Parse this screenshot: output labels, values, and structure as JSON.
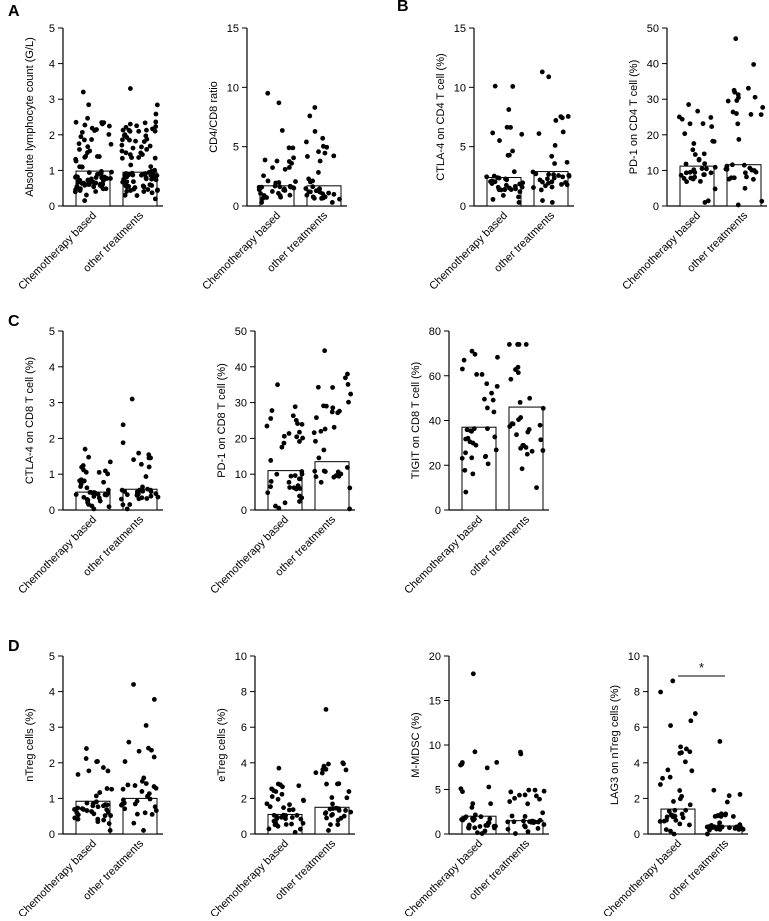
{
  "panel_labels": [
    "A",
    "B",
    "C",
    "D"
  ],
  "chart_data": [
    {
      "panel": "A",
      "type": "scatter",
      "subtype": "bar-with-dots",
      "categories": [
        "Chemotherapy based",
        "other treatments"
      ],
      "ylabel": "Absolute lymphocyte count (G/L)",
      "ylim": [
        0,
        5
      ],
      "yticks": [
        0,
        1,
        2,
        3,
        4,
        5
      ],
      "bar_values": [
        0.98,
        0.95
      ],
      "point_counts": [
        80,
        90
      ],
      "point_range": [
        [
          0.15,
          3.2
        ],
        [
          0.2,
          3.3
        ]
      ]
    },
    {
      "panel": "A",
      "type": "scatter",
      "subtype": "bar-with-dots",
      "categories": [
        "Chemotherapy based",
        "other treatments"
      ],
      "ylabel": "CD4/CD8 ratio",
      "ylim": [
        0,
        15
      ],
      "yticks": [
        0,
        5,
        10,
        15
      ],
      "bar_values": [
        1.7,
        1.7
      ],
      "point_counts": [
        40,
        35
      ],
      "point_range": [
        [
          0.3,
          9.5
        ],
        [
          0.3,
          8.3
        ]
      ]
    },
    {
      "panel": "B",
      "type": "scatter",
      "subtype": "bar-with-dots",
      "categories": [
        "Chemotherapy based",
        "other treatments"
      ],
      "ylabel": "CTLA-4 on CD4 T cell (%)",
      "ylim": [
        0,
        15
      ],
      "yticks": [
        0,
        5,
        10,
        15
      ],
      "bar_values": [
        2.4,
        2.9
      ],
      "point_counts": [
        40,
        35
      ],
      "point_range": [
        [
          0.3,
          10.1
        ],
        [
          0.3,
          11.3
        ]
      ]
    },
    {
      "panel": "B",
      "type": "scatter",
      "subtype": "bar-with-dots",
      "categories": [
        "Chemotherapy based",
        "other treatments"
      ],
      "ylabel": "PD-1 on CD4 T cell (%)",
      "ylim": [
        0,
        50
      ],
      "yticks": [
        0,
        10,
        20,
        30,
        40,
        50
      ],
      "bar_values": [
        11.2,
        11.6
      ],
      "point_counts": [
        40,
        35
      ],
      "point_range": [
        [
          1,
          28.5
        ],
        [
          0.3,
          47
        ]
      ]
    },
    {
      "panel": "C",
      "type": "scatter",
      "subtype": "bar-with-dots",
      "categories": [
        "Chemotherapy based",
        "other treatments"
      ],
      "ylabel": "CTLA-4 on CD8 T cell (%)",
      "ylim": [
        0,
        5
      ],
      "yticks": [
        0,
        1,
        2,
        3,
        4,
        5
      ],
      "bar_values": [
        0.5,
        0.58
      ],
      "point_counts": [
        40,
        35
      ],
      "point_range": [
        [
          0.03,
          1.7
        ],
        [
          0.03,
          3.1
        ]
      ]
    },
    {
      "panel": "C",
      "type": "scatter",
      "subtype": "bar-with-dots",
      "categories": [
        "Chemotherapy based",
        "other treatments"
      ],
      "ylabel": "PD-1 on CD8 T cell (%)",
      "ylim": [
        0,
        50
      ],
      "yticks": [
        0,
        10,
        20,
        30,
        40,
        50
      ],
      "bar_values": [
        11,
        13.5
      ],
      "point_counts": [
        40,
        35
      ],
      "point_range": [
        [
          0.5,
          35
        ],
        [
          0.3,
          44.5
        ]
      ]
    },
    {
      "panel": "C",
      "type": "scatter",
      "subtype": "bar-with-dots",
      "categories": [
        "Chemotherapy based",
        "other treatments"
      ],
      "ylabel": "TIGIT on CD8 T cell (%)",
      "ylim": [
        0,
        80
      ],
      "yticks": [
        0,
        20,
        40,
        60,
        80
      ],
      "bar_values": [
        37,
        46
      ],
      "point_counts": [
        35,
        30
      ],
      "point_range": [
        [
          8,
          71
        ],
        [
          10,
          74
        ]
      ]
    },
    {
      "panel": "D",
      "type": "scatter",
      "subtype": "bar-with-dots",
      "categories": [
        "Chemotherapy based",
        "other treatments"
      ],
      "ylabel": "nTreg cells (%)",
      "ylim": [
        0,
        5
      ],
      "yticks": [
        0,
        1,
        2,
        3,
        4,
        5
      ],
      "bar_values": [
        0.92,
        1.0
      ],
      "point_counts": [
        40,
        35
      ],
      "point_range": [
        [
          0.1,
          2.4
        ],
        [
          0.1,
          4.2
        ]
      ]
    },
    {
      "panel": "D",
      "type": "scatter",
      "subtype": "bar-with-dots",
      "categories": [
        "Chemotherapy based",
        "other treatments"
      ],
      "ylabel": "eTreg cells (%)",
      "ylim": [
        0,
        10
      ],
      "yticks": [
        0,
        2,
        4,
        6,
        8,
        10
      ],
      "bar_values": [
        1.1,
        1.5
      ],
      "point_counts": [
        40,
        35
      ],
      "point_range": [
        [
          0.1,
          3.7
        ],
        [
          0.2,
          7
        ]
      ]
    },
    {
      "panel": "D",
      "type": "scatter",
      "subtype": "bar-with-dots",
      "categories": [
        "Chemotherapy based",
        "other treatments"
      ],
      "ylabel": "M-MDSC (%)",
      "ylim": [
        0,
        20
      ],
      "yticks": [
        0,
        5,
        10,
        15,
        20
      ],
      "bar_values": [
        2.0,
        1.5
      ],
      "point_counts": [
        40,
        35
      ],
      "point_range": [
        [
          0.05,
          18
        ],
        [
          0.05,
          9.2
        ]
      ]
    },
    {
      "panel": "D",
      "type": "scatter",
      "subtype": "bar-with-dots",
      "categories": [
        "Chemotherapy based",
        "other treatments"
      ],
      "ylabel": "LAG3 on nTreg cells (%)",
      "ylim": [
        0,
        10
      ],
      "yticks": [
        0,
        2,
        4,
        6,
        8,
        10
      ],
      "bar_values": [
        1.4,
        0.45
      ],
      "point_counts": [
        40,
        35
      ],
      "point_range": [
        [
          0,
          8.6
        ],
        [
          0,
          5.2
        ]
      ],
      "significance": "*"
    }
  ]
}
